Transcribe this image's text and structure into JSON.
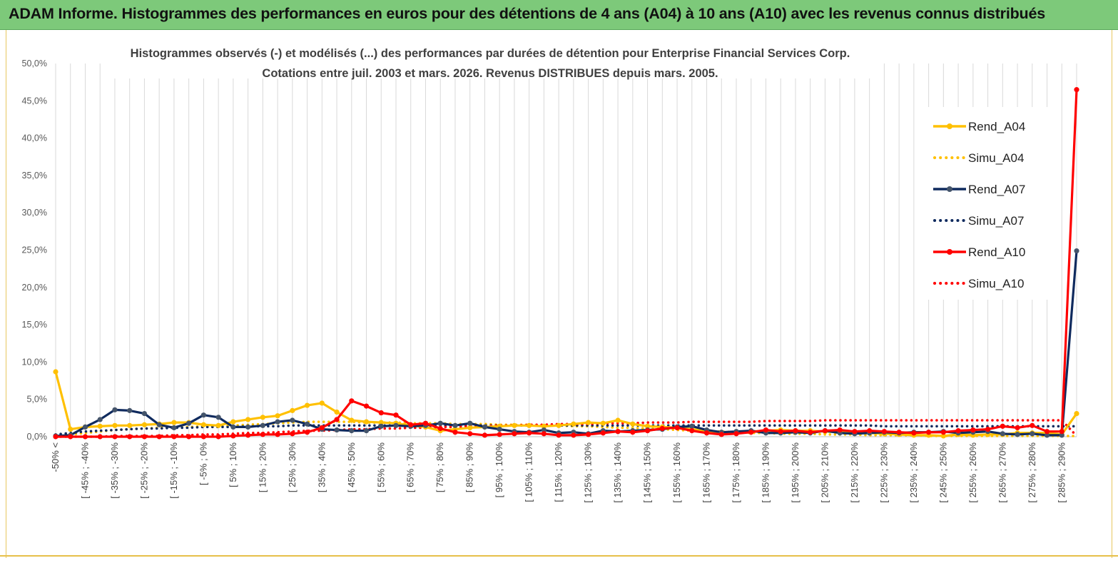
{
  "header": {
    "banner_title": "ADAM Informe. Histogrammes des performances en euros pour des détentions de 4 ans (A04) à 10 ans (A10) avec les revenus connus distribués",
    "banner_color": "#7dc97a"
  },
  "chart_data": {
    "type": "line",
    "title_lines": [
      "Histogrammes observés (-)  et modélisés (...) des performances par durées de détention pour Enterprise Financial Services  Corp.",
      "Cotations entre juil. 2003 et mars. 2026. Revenus DISTRIBUES  depuis mars. 2005."
    ],
    "xlabel": "",
    "ylabel": "",
    "ylim": [
      0,
      50
    ],
    "y_ticks": [
      "0,0%",
      "5,0%",
      "10,0%",
      "15,0%",
      "20,0%",
      "25,0%",
      "30,0%",
      "35,0%",
      "40,0%",
      "45,0%",
      "50,0%"
    ],
    "grid": "vertical",
    "legend_position": "right",
    "x_tick_labels": [
      "-50% <",
      "[ -45% ; -40%",
      "[ -35% ; -30%",
      "[ -25% ; -20%",
      "[ -15% ; -10%",
      "[ -5% ; 0%",
      "[ 5% ; 10%",
      "[ 15% ; 20%",
      "[ 25% ; 30%",
      "[ 35% ; 40%",
      "[ 45% ; 50%",
      "[ 55% ; 60%",
      "[ 65% ; 70%",
      "[ 75% ; 80%",
      "[ 85% ; 90%",
      "[ 95% ; 100%",
      "[ 105% ; 110%",
      "[ 115% ; 120%",
      "[ 125% ; 130%",
      "[ 135% ; 140%",
      "[ 145% ; 150%",
      "[ 155% ; 160%",
      "[ 165% ; 170%",
      "[ 175% ; 180%",
      "[ 185% ; 190%",
      "[ 195% ; 200%",
      "[ 205% ; 210%",
      "[ 215% ; 220%",
      "[ 225% ; 230%",
      "[ 235% ; 240%",
      "[ 245% ; 250%",
      "[ 255% ; 260%",
      "[ 265% ; 270%",
      "[ 275% ; 280%",
      "[ 285% ; 290%"
    ],
    "n_points": 70,
    "label_step": 2,
    "series": [
      {
        "name": "Rend_A04",
        "style": "solid",
        "color": "#ffc000",
        "values": [
          8.7,
          1.0,
          1.3,
          1.4,
          1.5,
          1.5,
          1.6,
          1.7,
          1.9,
          1.9,
          1.6,
          1.5,
          2.0,
          2.3,
          2.6,
          2.8,
          3.5,
          4.2,
          4.5,
          3.3,
          2.2,
          2.0,
          1.9,
          1.8,
          1.5,
          1.3,
          0.8,
          1.0,
          1.2,
          1.3,
          1.4,
          1.5,
          1.5,
          1.4,
          1.5,
          1.7,
          1.9,
          1.8,
          2.2,
          1.7,
          1.4,
          1.3,
          1.2,
          1.0,
          0.8,
          0.5,
          0.6,
          0.7,
          0.8,
          0.9,
          0.8,
          0.8,
          0.7,
          0.6,
          0.5,
          0.5,
          0.4,
          0.3,
          0.2,
          0.2,
          0.1,
          0.3,
          0.2,
          0.3,
          0.3,
          0.5,
          0.5,
          0.5,
          0.3,
          3.1
        ]
      },
      {
        "name": "Simu_A04",
        "style": "dotted",
        "color": "#ffc000",
        "values": [
          0.2,
          0.3,
          0.5,
          0.7,
          0.9,
          1.0,
          1.1,
          1.2,
          1.3,
          1.3,
          1.4,
          1.4,
          1.5,
          1.6,
          1.7,
          1.8,
          1.9,
          2.0,
          2.0,
          2.0,
          2.0,
          1.9,
          1.9,
          1.9,
          1.8,
          1.8,
          1.8,
          1.7,
          1.7,
          1.7,
          1.6,
          1.6,
          1.6,
          1.5,
          1.5,
          1.4,
          1.4,
          1.3,
          1.2,
          1.2,
          1.1,
          1.0,
          0.9,
          0.8,
          0.7,
          0.7,
          0.6,
          0.5,
          0.5,
          0.4,
          0.4,
          0.4,
          0.3,
          0.3,
          0.3,
          0.2,
          0.2,
          0.2,
          0.2,
          0.1,
          0.1,
          0.1,
          0.1,
          0.1,
          0.1,
          0.1,
          0.1,
          0.1,
          0.1,
          0.1
        ]
      },
      {
        "name": "Rend_A07",
        "style": "solid",
        "color": "#0f2a5e",
        "values": [
          0.1,
          0.2,
          1.3,
          2.3,
          3.6,
          3.5,
          3.1,
          1.6,
          1.2,
          1.8,
          2.9,
          2.6,
          1.3,
          1.3,
          1.5,
          2.0,
          2.2,
          1.7,
          1.0,
          0.9,
          0.8,
          0.8,
          1.4,
          1.5,
          1.4,
          1.5,
          1.8,
          1.5,
          1.8,
          1.3,
          1.0,
          0.7,
          0.6,
          0.9,
          0.5,
          0.6,
          0.4,
          0.8,
          0.7,
          0.8,
          0.9,
          1.0,
          1.3,
          1.4,
          0.9,
          0.6,
          0.7,
          0.8,
          0.5,
          0.5,
          0.6,
          0.5,
          0.8,
          0.5,
          0.4,
          0.5,
          0.6,
          0.5,
          0.6,
          0.6,
          0.7,
          0.5,
          0.6,
          0.7,
          0.4,
          0.3,
          0.4,
          0.2,
          0.2,
          24.9
        ]
      },
      {
        "name": "Simu_A07",
        "style": "dotted",
        "color": "#0f2a5e",
        "values": [
          0.3,
          0.5,
          0.7,
          0.8,
          0.9,
          1.0,
          1.1,
          1.1,
          1.2,
          1.2,
          1.3,
          1.3,
          1.3,
          1.4,
          1.4,
          1.4,
          1.5,
          1.5,
          1.5,
          1.5,
          1.5,
          1.5,
          1.5,
          1.5,
          1.5,
          1.5,
          1.5,
          1.5,
          1.5,
          1.5,
          1.5,
          1.5,
          1.5,
          1.5,
          1.5,
          1.5,
          1.5,
          1.5,
          1.5,
          1.5,
          1.5,
          1.5,
          1.5,
          1.5,
          1.5,
          1.5,
          1.5,
          1.5,
          1.5,
          1.5,
          1.5,
          1.5,
          1.5,
          1.5,
          1.5,
          1.5,
          1.4,
          1.4,
          1.4,
          1.4,
          1.4,
          1.4,
          1.4,
          1.4,
          1.4,
          1.4,
          1.4,
          1.4,
          1.4,
          1.4
        ]
      },
      {
        "name": "Rend_A10",
        "style": "solid",
        "color": "#ff0000",
        "values": [
          0.0,
          0.0,
          0.0,
          0.0,
          0.0,
          0.0,
          0.0,
          0.0,
          0.0,
          0.0,
          0.0,
          0.0,
          0.1,
          0.2,
          0.3,
          0.3,
          0.4,
          0.6,
          1.2,
          2.3,
          4.8,
          4.1,
          3.2,
          2.9,
          1.6,
          1.8,
          1.1,
          0.6,
          0.4,
          0.2,
          0.3,
          0.4,
          0.5,
          0.4,
          0.2,
          0.2,
          0.3,
          0.5,
          0.7,
          0.6,
          0.8,
          1.1,
          1.2,
          0.8,
          0.5,
          0.3,
          0.4,
          0.6,
          0.9,
          0.7,
          0.8,
          0.6,
          0.8,
          0.9,
          0.7,
          0.8,
          0.7,
          0.6,
          0.5,
          0.6,
          0.6,
          0.8,
          0.9,
          1.0,
          1.4,
          1.2,
          1.5,
          0.7,
          0.7,
          46.5
        ]
      },
      {
        "name": "Simu_A10",
        "style": "dotted",
        "color": "#ff0000",
        "values": [
          0.0,
          0.0,
          0.0,
          0.0,
          0.1,
          0.1,
          0.1,
          0.1,
          0.2,
          0.2,
          0.3,
          0.3,
          0.4,
          0.5,
          0.5,
          0.6,
          0.7,
          0.8,
          0.8,
          0.9,
          1.0,
          1.0,
          1.1,
          1.1,
          1.2,
          1.2,
          1.3,
          1.3,
          1.4,
          1.4,
          1.5,
          1.5,
          1.6,
          1.6,
          1.7,
          1.7,
          1.7,
          1.8,
          1.8,
          1.8,
          1.9,
          1.9,
          1.9,
          2.0,
          2.0,
          2.0,
          2.0,
          2.0,
          2.1,
          2.1,
          2.1,
          2.1,
          2.2,
          2.2,
          2.2,
          2.2,
          2.2,
          2.2,
          2.2,
          2.2,
          2.2,
          2.2,
          2.2,
          2.2,
          2.2,
          2.2,
          2.2,
          2.2,
          2.2,
          0.1
        ]
      }
    ]
  }
}
